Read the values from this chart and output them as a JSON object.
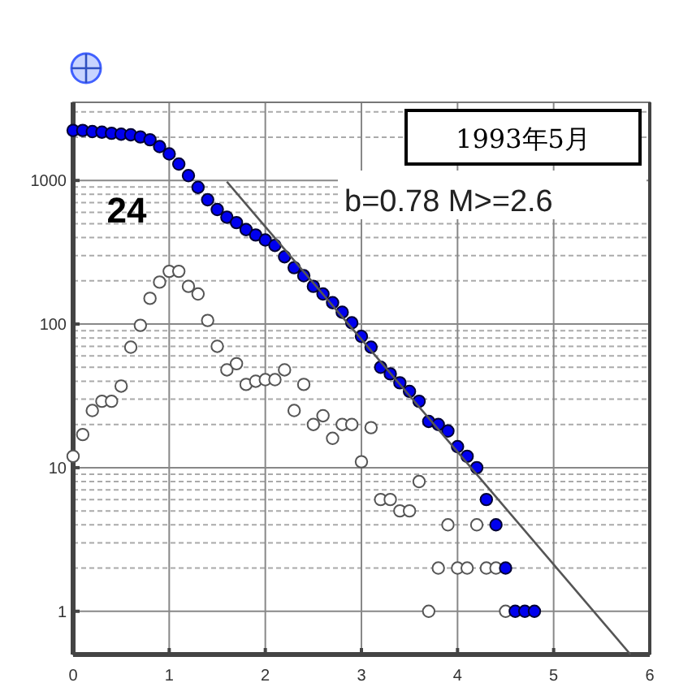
{
  "chart_data": {
    "type": "scatter",
    "log": "y",
    "xlim": [
      0,
      6
    ],
    "ylim": [
      0.5,
      3500
    ],
    "xticks": [
      0,
      1,
      2,
      3,
      4,
      5,
      6
    ],
    "yticks": [
      1,
      {
        "value": 2,
        "label": null
      },
      {
        "value": 3,
        "label": null
      },
      {
        "value": 4,
        "label": null
      },
      {
        "value": 5,
        "label": null
      },
      {
        "value": 6,
        "label": null
      },
      {
        "value": 7,
        "label": null
      },
      {
        "value": 8,
        "label": null
      },
      {
        "value": 9,
        "label": null
      },
      10,
      {
        "value": 20,
        "label": null
      },
      {
        "value": 30,
        "label": null
      },
      {
        "value": 40,
        "label": null
      },
      {
        "value": 50,
        "label": null
      },
      {
        "value": 60,
        "label": null
      },
      {
        "value": 70,
        "label": null
      },
      {
        "value": 80,
        "label": null
      },
      {
        "value": 90,
        "label": null
      },
      100,
      {
        "value": 200,
        "label": null
      },
      {
        "value": 300,
        "label": null
      },
      {
        "value": 400,
        "label": null
      },
      {
        "value": 500,
        "label": null
      },
      {
        "value": 600,
        "label": null
      },
      {
        "value": 700,
        "label": null
      },
      {
        "value": 800,
        "label": null
      },
      {
        "value": 900,
        "label": null
      },
      1000,
      {
        "value": 2000,
        "label": null
      },
      {
        "value": 3000,
        "label": null
      }
    ],
    "grid": true,
    "marker": "circle",
    "annotations": [
      "24",
      "b=0.78  M>=2.6",
      "1993年5月"
    ],
    "series": [
      {
        "color": "#555555",
        "x": [
          0,
          0.1,
          0.2,
          0.3,
          0.4,
          0.5,
          0.6,
          0.7,
          0.8,
          0.9,
          1.0,
          1.1,
          1.2,
          1.3,
          1.4,
          1.5,
          1.6,
          1.7,
          1.8,
          1.9,
          2.0,
          2.1,
          2.2,
          2.3,
          2.4,
          2.5,
          2.6,
          2.7,
          2.8,
          2.9,
          3.0,
          3.1,
          3.2,
          3.3,
          3.4,
          3.5,
          3.6,
          3.7,
          3.8,
          3.9,
          4.0,
          4.1,
          4.2,
          4.3,
          4.4,
          4.5
        ],
        "values": [
          12,
          17,
          25,
          29,
          29,
          37,
          69,
          98,
          151,
          196,
          233,
          233,
          183,
          162,
          106,
          70,
          48,
          53,
          38,
          40,
          41,
          41,
          48,
          25,
          38,
          20,
          23,
          16,
          20,
          20,
          11,
          19,
          6,
          6,
          5,
          5,
          8,
          1,
          2,
          4,
          2,
          2,
          4,
          2,
          2,
          1
        ]
      },
      {
        "color": "#0000ee",
        "x": [
          0,
          0.1,
          0.2,
          0.3,
          0.4,
          0.5,
          0.6,
          0.7,
          0.8,
          0.9,
          1.0,
          1.1,
          1.2,
          1.3,
          1.4,
          1.5,
          1.6,
          1.7,
          1.8,
          1.9,
          2.0,
          2.1,
          2.2,
          2.3,
          2.4,
          2.5,
          2.6,
          2.7,
          2.8,
          2.9,
          3.0,
          3.1,
          3.2,
          3.3,
          3.4,
          3.5,
          3.6,
          3.7,
          3.8,
          3.9,
          4.0,
          4.1,
          4.2,
          4.3,
          4.4,
          4.5,
          4.6,
          4.7,
          4.8
        ],
        "values": [
          2230,
          2230,
          2190,
          2170,
          2130,
          2100,
          2080,
          2010,
          1920,
          1720,
          1530,
          1300,
          1080,
          895,
          733,
          627,
          555,
          509,
          455,
          417,
          385,
          353,
          294,
          247,
          217,
          183,
          162,
          141,
          121,
          102,
          82,
          69,
          50,
          45,
          39,
          34,
          29,
          21,
          20,
          18,
          14,
          12,
          10,
          6,
          4,
          2,
          1,
          1,
          1
        ]
      },
      {
        "type": "line",
        "color": "#555555",
        "marker": "none",
        "x": [
          1.6,
          5.8
        ],
        "values": [
          980,
          0.5
        ]
      }
    ]
  }
}
